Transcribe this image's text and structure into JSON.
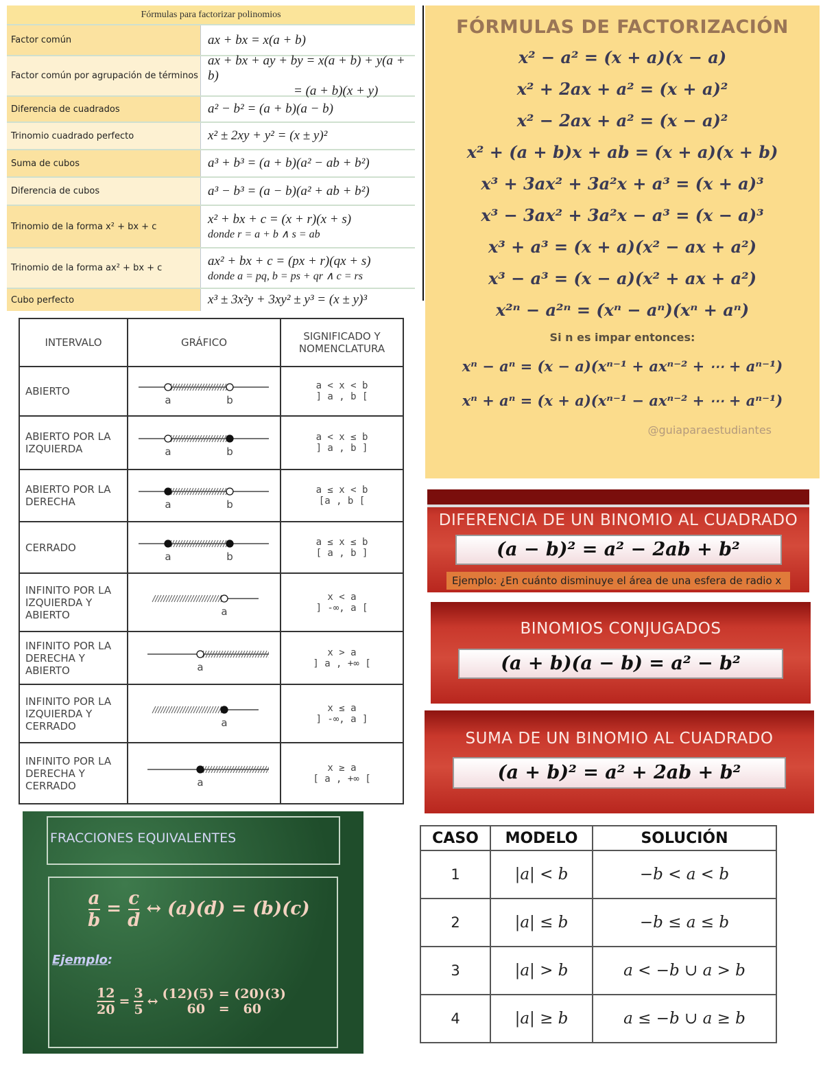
{
  "factor_table": {
    "title": "Fórmulas para factorizar polinomios",
    "rows": [
      {
        "name": "Factor común",
        "formula": "ax + bx = x(a + b)",
        "note": ""
      },
      {
        "name": "Factor común por agrupación de términos",
        "formula": "ax + bx + ay + by = x(a + b) + y(a + b)",
        "note": "= (a + b)(x + y)"
      },
      {
        "name": "Diferencia de cuadrados",
        "formula": "a² − b² = (a + b)(a − b)",
        "note": ""
      },
      {
        "name": "Trinomio cuadrado perfecto",
        "formula": "x² ± 2xy + y² = (x ± y)²",
        "note": ""
      },
      {
        "name": "Suma de cubos",
        "formula": "a³ + b³ = (a + b)(a² − ab + b²)",
        "note": ""
      },
      {
        "name": "Diferencia de cubos",
        "formula": "a³ − b³ = (a − b)(a² + ab + b²)",
        "note": ""
      },
      {
        "name": "Trinomio de la forma x² + bx + c",
        "formula": "x² + bx + c = (x + r)(x + s)",
        "note": "donde  r = a + b ∧ s = ab"
      },
      {
        "name": "Trinomio de la forma ax² + bx + c",
        "formula": "ax² + bx + c = (px + r)(qx + s)",
        "note": "donde  a = pq, b = ps + qr ∧ c = rs"
      },
      {
        "name": "Cubo perfecto",
        "formula": "x³ ± 3x²y + 3xy² ± y³ = (x ± y)³",
        "note": ""
      }
    ]
  },
  "factorization_poster": {
    "title": "FÓRMULAS DE FACTORIZACIÓN",
    "formulas": [
      "x² − a² = (x + a)(x − a)",
      "x² + 2ax + a² = (x + a)²",
      "x² − 2ax + a² = (x − a)²",
      "x² + (a + b)x + ab = (x + a)(x + b)",
      "x³ + 3ax² + 3a²x + a³ = (x + a)³",
      "x³ − 3ax² + 3a²x − a³ = (x − a)³",
      "x³ + a³ = (x + a)(x² − ax + a²)",
      "x³ − a³ = (x − a)(x² + ax + a²)",
      "x²ⁿ − a²ⁿ = (xⁿ − aⁿ)(xⁿ + aⁿ)"
    ],
    "odd_note": "Si n es impar entonces:",
    "odd_formulas": [
      "xⁿ − aⁿ = (x − a)(xⁿ⁻¹ + axⁿ⁻² + ⋯ + aⁿ⁻¹)",
      "xⁿ + aⁿ = (x + a)(xⁿ⁻¹ − axⁿ⁻² + ⋯ + aⁿ⁻¹)"
    ],
    "handle": "@guiaparaestudiantes"
  },
  "interval_table": {
    "headers": [
      "INTERVALO",
      "GRÁFICO",
      "SIGNIFICADO Y NOMENCLATURA"
    ],
    "rows": [
      {
        "name": "ABIERTO",
        "shape": "bounded",
        "left": "open",
        "right": "open",
        "ineq": "a < x < b",
        "notation": "] a , b ["
      },
      {
        "name": "ABIERTO POR LA IZQUIERDA",
        "shape": "bounded",
        "left": "open",
        "right": "closed",
        "ineq": "a < x ≤ b",
        "notation": "] a , b ]"
      },
      {
        "name": "ABIERTO POR LA DERECHA",
        "shape": "bounded",
        "left": "closed",
        "right": "open",
        "ineq": "a ≤ x < b",
        "notation": "[a , b ["
      },
      {
        "name": "CERRADO",
        "shape": "bounded",
        "left": "closed",
        "right": "closed",
        "ineq": "a ≤ x ≤ b",
        "notation": "[ a , b ]"
      },
      {
        "name": "INFINITO POR LA IZQUIERDA Y ABIERTO",
        "shape": "left-inf",
        "left": "",
        "right": "open",
        "ineq": "x < a",
        "notation": "] -∞, a ["
      },
      {
        "name": "INFINITO POR LA DERECHA Y ABIERTO",
        "shape": "right-inf",
        "left": "open",
        "right": "",
        "ineq": "x > a",
        "notation": "] a , +∞ ["
      },
      {
        "name": "INFINITO POR LA IZQUIERDA Y CERRADO",
        "shape": "left-inf",
        "left": "",
        "right": "closed",
        "ineq": "x ≤ a",
        "notation": "] -∞, a ]"
      },
      {
        "name": "INFINITO POR LA DERECHA Y CERRADO",
        "shape": "right-inf",
        "left": "closed",
        "right": "",
        "ineq": "x ≥ a",
        "notation": "[ a , +∞ ["
      }
    ],
    "label_a": "a",
    "label_b": "b"
  },
  "red_panels": [
    {
      "title": "DIFERENCIA DE UN BINOMIO AL CUADRADO",
      "formula": "(a − b)² = a² − 2ab + b²",
      "example": "Ejemplo:   ¿En cuánto disminuye el área de una esfera de radio x"
    },
    {
      "title": "BINOMIOS CONJUGADOS",
      "formula": "(a + b)(a − b) = a² − b²"
    },
    {
      "title": "SUMA DE UN BINOMIO AL CUADRADO",
      "formula": "(a + b)² = a² + 2ab + b²"
    }
  ],
  "equivalent_fractions": {
    "title": "FRACCIONES EQUIVALENTES",
    "rule": {
      "n1": "a",
      "d1": "b",
      "n2": "c",
      "d2": "d",
      "rest": "↔ (a)(d) = (b)(c)"
    },
    "example_label": "Ejemplo",
    "example": {
      "n1": "12",
      "d1": "20",
      "n2": "3",
      "d2": "5",
      "line1": "(12)(5) = (20)(3)",
      "line2": "60   =   60"
    }
  },
  "abs_table": {
    "headers": [
      "CASO",
      "MODELO",
      "SOLUCIÓN"
    ],
    "rows": [
      [
        "1",
        "|a| < b",
        "−b < a < b"
      ],
      [
        "2",
        "|a| ≤ b",
        "−b ≤ a ≤ b"
      ],
      [
        "3",
        "|a| > b",
        "a < −b  ∪  a > b"
      ],
      [
        "4",
        "|a| ≥ b",
        "a ≤ −b  ∪  a ≥ b"
      ]
    ]
  }
}
